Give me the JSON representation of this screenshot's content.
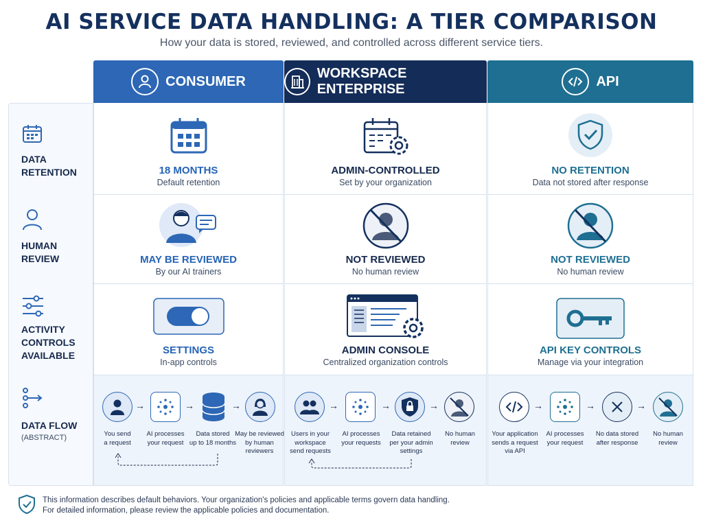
{
  "title": "AI SERVICE DATA HANDLING: A TIER COMPARISON",
  "subtitle": "How your data is stored, reviewed, and controlled across different service tiers.",
  "columns": [
    {
      "label": "CONSUMER",
      "icon": "user-icon",
      "color": "#2d67b5"
    },
    {
      "label": "WORKSPACE ENTERPRISE",
      "icon": "building-icon",
      "color": "#142c58"
    },
    {
      "label": "API",
      "icon": "code-icon",
      "color": "#1e6f92"
    }
  ],
  "rows": [
    {
      "label_line1": "DATA",
      "label_line2": "RETENTION",
      "icon": "calendar-icon"
    },
    {
      "label_line1": "HUMAN",
      "label_line2": "REVIEW",
      "icon": "person-icon"
    },
    {
      "label_line1": "ACTIVITY",
      "label_line2": "CONTROLS",
      "label_line3": "AVAILABLE",
      "icon": "sliders-icon"
    },
    {
      "label_line1": "DATA FLOW",
      "label_sub": "(ABSTRACT)",
      "icon": "flow-icon"
    }
  ],
  "cells": {
    "retention": [
      {
        "title": "18 MONTHS",
        "sub": "Default retention"
      },
      {
        "title": "ADMIN-CONTROLLED",
        "sub": "Set by your organization"
      },
      {
        "title": "NO RETENTION",
        "sub": "Data not stored after response"
      }
    ],
    "review": [
      {
        "title": "MAY BE REVIEWED",
        "sub": "By our AI trainers"
      },
      {
        "title": "NOT REVIEWED",
        "sub": "No human review"
      },
      {
        "title": "NOT REVIEWED",
        "sub": "No human review"
      }
    ],
    "controls": [
      {
        "title": "SETTINGS",
        "sub": "In-app controls"
      },
      {
        "title": "ADMIN CONSOLE",
        "sub": "Centralized organization controls"
      },
      {
        "title": "API KEY CONTROLS",
        "sub": "Manage via your integration"
      }
    ]
  },
  "flows": [
    {
      "steps": [
        {
          "l1": "You send",
          "l2": "a request",
          "icon": "user-icon"
        },
        {
          "l1": "AI processes",
          "l2": "your request",
          "icon": "network-icon"
        },
        {
          "l1": "Data stored",
          "l2": "up to 18 months",
          "icon": "database-icon"
        },
        {
          "l1": "May be reviewed",
          "l2": "by human",
          "l3": "reviewers",
          "icon": "reviewer-icon"
        }
      ]
    },
    {
      "steps": [
        {
          "l1": "Users in your",
          "l2": "workspace",
          "l3": "send requests",
          "icon": "users-icon"
        },
        {
          "l1": "AI processes",
          "l2": "your requests",
          "icon": "network-icon"
        },
        {
          "l1": "Data retained",
          "l2": "per your admin",
          "l3": "settings",
          "icon": "shield-lock-icon"
        },
        {
          "l1": "No human",
          "l2": "review",
          "icon": "no-person-icon"
        }
      ]
    },
    {
      "steps": [
        {
          "l1": "Your application",
          "l2": "sends a request",
          "l3": "via API",
          "icon": "code-icon"
        },
        {
          "l1": "AI processes",
          "l2": "your request",
          "icon": "network-icon"
        },
        {
          "l1": "No data stored",
          "l2": "after response",
          "icon": "x-icon"
        },
        {
          "l1": "No human",
          "l2": "review",
          "icon": "no-person-icon"
        }
      ]
    }
  ],
  "footer": {
    "line1": "This information describes default behaviors. Your organization's policies and applicable terms govern data handling.",
    "line2": "For detailed information, please review the applicable policies and documentation.",
    "icon": "shield-check-icon"
  }
}
